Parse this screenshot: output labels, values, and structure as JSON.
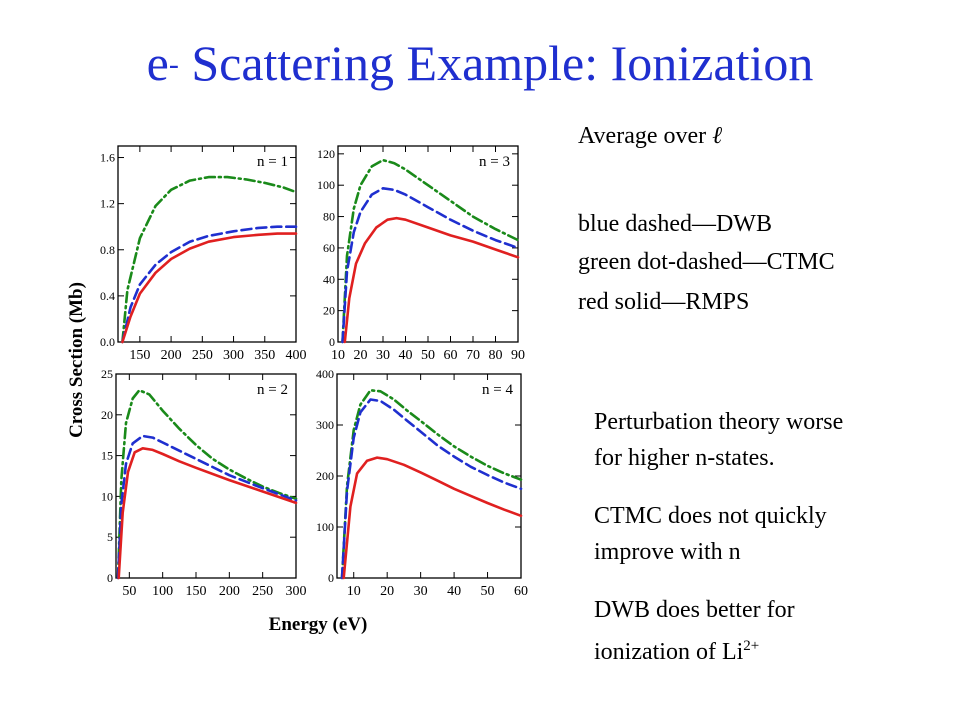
{
  "slide": {
    "title_prefix": "e",
    "title_sup": "-",
    "title_rest": " Scattering Example: Ionization",
    "average_prefix": "Average over ",
    "average_symbol": "ℓ",
    "legend_lines": [
      "blue dashed—DWB",
      "green dot-dashed—CTMC",
      "red solid—RMPS"
    ],
    "notes": [
      "Perturbation theory worse",
      "for higher n-states.",
      "CTMC does not quickly",
      "improve with n",
      "DWB does better for",
      "ionization of Li"
    ],
    "li_sup": "2+"
  },
  "colors": {
    "title": "#1f2fcf",
    "dwb": "#1f2fcf",
    "ctmc": "#1a8a1a",
    "rmps": "#e02020",
    "axis": "#000000"
  },
  "chart_data": [
    {
      "type": "line",
      "panel_label": "n = 1",
      "xlabel": "Energy (eV)",
      "ylabel": "Cross Section (Mb)",
      "xlim": [
        115,
        400
      ],
      "ylim": [
        0,
        1.7
      ],
      "xticks": [
        150,
        200,
        250,
        300,
        350,
        400
      ],
      "yticks": [
        0.0,
        0.4,
        0.8,
        1.2,
        1.6
      ],
      "ytick_labels": [
        "0.0",
        "0.4",
        "0.8",
        "1.2",
        "1.6"
      ],
      "series": [
        {
          "name": "CTMC",
          "style": "dashdot",
          "x": [
            122,
            130,
            150,
            175,
            200,
            230,
            260,
            290,
            320,
            350,
            380,
            400
          ],
          "y": [
            0,
            0.45,
            0.9,
            1.18,
            1.32,
            1.4,
            1.43,
            1.43,
            1.41,
            1.38,
            1.34,
            1.3
          ]
        },
        {
          "name": "DWB",
          "style": "dashed",
          "x": [
            122,
            135,
            150,
            175,
            200,
            230,
            260,
            300,
            340,
            370,
            400
          ],
          "y": [
            0,
            0.3,
            0.5,
            0.67,
            0.78,
            0.87,
            0.92,
            0.96,
            0.99,
            1.0,
            1.0
          ]
        },
        {
          "name": "RMPS",
          "style": "solid",
          "x": [
            122,
            135,
            150,
            175,
            200,
            230,
            260,
            300,
            340,
            370,
            400
          ],
          "y": [
            0,
            0.22,
            0.42,
            0.6,
            0.72,
            0.81,
            0.87,
            0.91,
            0.93,
            0.94,
            0.94
          ]
        }
      ]
    },
    {
      "type": "line",
      "panel_label": "n = 3",
      "xlim": [
        10,
        90
      ],
      "ylim": [
        0,
        125
      ],
      "xticks": [
        10,
        20,
        30,
        40,
        50,
        60,
        70,
        80,
        90
      ],
      "yticks": [
        0,
        20,
        40,
        60,
        80,
        100,
        120
      ],
      "ytick_labels": [
        "0",
        "20",
        "40",
        "60",
        "80",
        "100",
        "120"
      ],
      "series": [
        {
          "name": "CTMC",
          "style": "dashdot",
          "x": [
            12,
            14,
            17,
            20,
            25,
            30,
            35,
            40,
            50,
            60,
            70,
            80,
            90
          ],
          "y": [
            0,
            55,
            85,
            100,
            112,
            116,
            114,
            110,
            100,
            90,
            80,
            72,
            65
          ]
        },
        {
          "name": "DWB",
          "style": "dashed",
          "x": [
            12,
            14,
            17,
            20,
            25,
            30,
            35,
            40,
            50,
            60,
            70,
            80,
            90
          ],
          "y": [
            0,
            45,
            70,
            83,
            94,
            98,
            97,
            94,
            86,
            78,
            71,
            65,
            60
          ]
        },
        {
          "name": "RMPS",
          "style": "solid",
          "x": [
            13,
            15,
            18,
            22,
            27,
            32,
            36,
            40,
            50,
            60,
            70,
            80,
            90
          ],
          "y": [
            0,
            28,
            50,
            63,
            73,
            78,
            79,
            78,
            73,
            68,
            64,
            59,
            54
          ]
        }
      ]
    },
    {
      "type": "line",
      "panel_label": "n = 2",
      "xlim": [
        30,
        300
      ],
      "ylim": [
        0,
        25
      ],
      "xticks": [
        50,
        100,
        150,
        200,
        250,
        300
      ],
      "yticks": [
        0,
        5,
        10,
        15,
        20,
        25
      ],
      "ytick_labels": [
        "0",
        "5",
        "10",
        "15",
        "20",
        "25"
      ],
      "series": [
        {
          "name": "CTMC",
          "style": "dashdot",
          "x": [
            33,
            38,
            45,
            55,
            65,
            80,
            100,
            125,
            150,
            175,
            200,
            225,
            250,
            275,
            300
          ],
          "y": [
            0,
            12,
            19,
            22,
            23,
            22.5,
            20.5,
            18.3,
            16.3,
            14.6,
            13.3,
            12.2,
            11.2,
            10.4,
            9.7
          ]
        },
        {
          "name": "DWB",
          "style": "dashed",
          "x": [
            33,
            38,
            45,
            55,
            70,
            85,
            100,
            125,
            150,
            200,
            250,
            300
          ],
          "y": [
            0,
            9,
            14,
            16.5,
            17.4,
            17.2,
            16.6,
            15.6,
            14.6,
            12.6,
            11,
            9.5
          ]
        },
        {
          "name": "RMPS",
          "style": "solid",
          "x": [
            34,
            40,
            48,
            58,
            70,
            85,
            100,
            125,
            150,
            200,
            250,
            300
          ],
          "y": [
            0,
            8,
            13,
            15.4,
            15.9,
            15.7,
            15.2,
            14.3,
            13.5,
            12,
            10.6,
            9.2
          ]
        }
      ]
    },
    {
      "type": "line",
      "panel_label": "n = 4",
      "xlim": [
        5,
        60
      ],
      "ylim": [
        0,
        400
      ],
      "xticks": [
        10,
        20,
        30,
        40,
        50,
        60
      ],
      "yticks": [
        0,
        100,
        200,
        300,
        400
      ],
      "ytick_labels": [
        "0",
        "100",
        "200",
        "300",
        "400"
      ],
      "series": [
        {
          "name": "CTMC",
          "style": "dashdot",
          "x": [
            6.5,
            8,
            10,
            12,
            15,
            18,
            22,
            26,
            30,
            35,
            40,
            45,
            50,
            55,
            60
          ],
          "y": [
            0,
            180,
            290,
            340,
            368,
            366,
            350,
            328,
            308,
            282,
            258,
            238,
            220,
            205,
            193
          ]
        },
        {
          "name": "DWB",
          "style": "dashed",
          "x": [
            6.5,
            8,
            10,
            12,
            15,
            18,
            22,
            26,
            30,
            35,
            40,
            45,
            50,
            55,
            60
          ],
          "y": [
            0,
            170,
            275,
            325,
            350,
            347,
            330,
            308,
            287,
            260,
            238,
            218,
            202,
            187,
            175
          ]
        },
        {
          "name": "RMPS",
          "style": "solid",
          "x": [
            7,
            9,
            11,
            14,
            17,
            20,
            25,
            30,
            35,
            40,
            45,
            50,
            55,
            60
          ],
          "y": [
            0,
            140,
            205,
            230,
            236,
            233,
            222,
            207,
            191,
            175,
            161,
            147,
            134,
            122
          ]
        }
      ]
    }
  ]
}
